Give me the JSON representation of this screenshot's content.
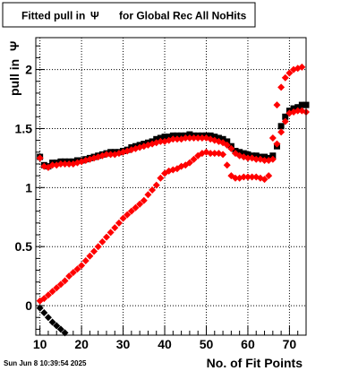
{
  "header": {
    "title_prefix": "Fitted pull in",
    "title_symbol": "Ψ",
    "title_suffix": "for Global Rec All NoHits"
  },
  "footer": {
    "timestamp": "Sun Jun  8 10:39:54 2025"
  },
  "chart_data": {
    "type": "scatter",
    "grid": true,
    "xlabel": "No. of Fit Points",
    "ylabel_prefix": "pull in",
    "ylabel_symbol": "Ψ",
    "xlim": [
      9,
      74
    ],
    "ylim": [
      -0.25,
      2.27
    ],
    "x_ticks": [
      10,
      20,
      30,
      40,
      50,
      60,
      70
    ],
    "y_ticks": [
      0,
      0.5,
      1,
      1.5,
      2
    ],
    "x_tick_labels": [
      "10",
      "20",
      "30",
      "40",
      "50",
      "60",
      "70"
    ],
    "y_tick_labels": [
      "0",
      "0.5",
      "1",
      "1.5",
      "2"
    ],
    "series": [
      {
        "color": "#000000",
        "marker": "square",
        "points": [
          [
            10,
            1.26
          ],
          [
            11,
            1.19
          ],
          [
            12,
            1.18
          ],
          [
            13,
            1.21
          ],
          [
            14,
            1.21
          ],
          [
            15,
            1.22
          ],
          [
            16,
            1.22
          ],
          [
            17,
            1.22
          ],
          [
            18,
            1.22
          ],
          [
            19,
            1.23
          ],
          [
            20,
            1.23
          ],
          [
            21,
            1.24
          ],
          [
            22,
            1.25
          ],
          [
            23,
            1.26
          ],
          [
            24,
            1.27
          ],
          [
            25,
            1.28
          ],
          [
            26,
            1.29
          ],
          [
            27,
            1.3
          ],
          [
            28,
            1.3
          ],
          [
            29,
            1.3
          ],
          [
            30,
            1.31
          ],
          [
            31,
            1.32
          ],
          [
            32,
            1.34
          ],
          [
            33,
            1.35
          ],
          [
            34,
            1.36
          ],
          [
            35,
            1.37
          ],
          [
            36,
            1.38
          ],
          [
            37,
            1.39
          ],
          [
            38,
            1.41
          ],
          [
            39,
            1.42
          ],
          [
            40,
            1.43
          ],
          [
            41,
            1.43
          ],
          [
            42,
            1.44
          ],
          [
            43,
            1.44
          ],
          [
            44,
            1.44
          ],
          [
            45,
            1.44
          ],
          [
            46,
            1.45
          ],
          [
            47,
            1.44
          ],
          [
            48,
            1.44
          ],
          [
            49,
            1.44
          ],
          [
            50,
            1.44
          ],
          [
            51,
            1.44
          ],
          [
            52,
            1.43
          ],
          [
            53,
            1.42
          ],
          [
            54,
            1.41
          ],
          [
            55,
            1.39
          ],
          [
            56,
            1.35
          ],
          [
            57,
            1.31
          ],
          [
            58,
            1.3
          ],
          [
            59,
            1.29
          ],
          [
            60,
            1.28
          ],
          [
            61,
            1.27
          ],
          [
            62,
            1.27
          ],
          [
            63,
            1.26
          ],
          [
            64,
            1.26
          ],
          [
            65,
            1.25
          ],
          [
            66,
            1.27
          ],
          [
            67,
            1.35
          ],
          [
            68,
            1.52
          ],
          [
            69,
            1.6
          ],
          [
            70,
            1.65
          ],
          [
            71,
            1.67
          ],
          [
            72,
            1.68
          ],
          [
            73,
            1.7
          ],
          [
            74,
            1.7
          ]
        ]
      },
      {
        "color": "#000000",
        "marker": "diamond",
        "points": [
          [
            10,
            -0.02
          ],
          [
            11,
            -0.06
          ],
          [
            12,
            -0.1
          ],
          [
            13,
            -0.14
          ],
          [
            14,
            -0.17
          ],
          [
            15,
            -0.2
          ],
          [
            16,
            -0.23
          ]
        ]
      },
      {
        "color": "#ff0000",
        "marker": "diamond",
        "points": [
          [
            10,
            1.25
          ],
          [
            11,
            1.18
          ],
          [
            12,
            1.17
          ],
          [
            13,
            1.19
          ],
          [
            14,
            1.19
          ],
          [
            15,
            1.2
          ],
          [
            16,
            1.2
          ],
          [
            17,
            1.2
          ],
          [
            18,
            1.2
          ],
          [
            19,
            1.21
          ],
          [
            20,
            1.22
          ],
          [
            21,
            1.23
          ],
          [
            22,
            1.24
          ],
          [
            23,
            1.25
          ],
          [
            24,
            1.26
          ],
          [
            25,
            1.27
          ],
          [
            26,
            1.28
          ],
          [
            27,
            1.28
          ],
          [
            28,
            1.28
          ],
          [
            29,
            1.29
          ],
          [
            30,
            1.3
          ],
          [
            31,
            1.31
          ],
          [
            32,
            1.32
          ],
          [
            33,
            1.33
          ],
          [
            34,
            1.34
          ],
          [
            35,
            1.35
          ],
          [
            36,
            1.36
          ],
          [
            37,
            1.37
          ],
          [
            38,
            1.38
          ],
          [
            39,
            1.39
          ],
          [
            40,
            1.39
          ],
          [
            41,
            1.4
          ],
          [
            42,
            1.41
          ],
          [
            43,
            1.41
          ],
          [
            44,
            1.41
          ],
          [
            45,
            1.42
          ],
          [
            46,
            1.42
          ],
          [
            47,
            1.42
          ],
          [
            48,
            1.42
          ],
          [
            49,
            1.42
          ],
          [
            50,
            1.42
          ],
          [
            51,
            1.41
          ],
          [
            52,
            1.4
          ],
          [
            53,
            1.39
          ],
          [
            54,
            1.38
          ],
          [
            55,
            1.36
          ],
          [
            56,
            1.33
          ],
          [
            57,
            1.29
          ],
          [
            58,
            1.27
          ],
          [
            59,
            1.26
          ],
          [
            60,
            1.25
          ],
          [
            61,
            1.25
          ],
          [
            62,
            1.24
          ],
          [
            63,
            1.24
          ],
          [
            64,
            1.23
          ],
          [
            65,
            1.23
          ],
          [
            66,
            1.24
          ],
          [
            67,
            1.37
          ],
          [
            68,
            1.47
          ],
          [
            69,
            1.56
          ],
          [
            70,
            1.63
          ],
          [
            71,
            1.64
          ],
          [
            72,
            1.65
          ],
          [
            73,
            1.65
          ],
          [
            74,
            1.64
          ]
        ]
      },
      {
        "color": "#ff0000",
        "marker": "diamond",
        "points": [
          [
            10,
            0.04
          ],
          [
            11,
            0.06
          ],
          [
            12,
            0.09
          ],
          [
            13,
            0.12
          ],
          [
            14,
            0.15
          ],
          [
            15,
            0.18
          ],
          [
            16,
            0.21
          ],
          [
            17,
            0.25
          ],
          [
            18,
            0.28
          ],
          [
            19,
            0.31
          ],
          [
            20,
            0.34
          ],
          [
            21,
            0.38
          ],
          [
            22,
            0.42
          ],
          [
            23,
            0.46
          ],
          [
            24,
            0.5
          ],
          [
            25,
            0.54
          ],
          [
            26,
            0.58
          ],
          [
            27,
            0.62
          ],
          [
            28,
            0.66
          ],
          [
            29,
            0.7
          ],
          [
            30,
            0.74
          ],
          [
            31,
            0.77
          ],
          [
            32,
            0.8
          ],
          [
            33,
            0.83
          ],
          [
            34,
            0.86
          ],
          [
            35,
            0.89
          ],
          [
            36,
            0.94
          ],
          [
            37,
            0.98
          ],
          [
            38,
            1.02
          ],
          [
            39,
            1.08
          ],
          [
            40,
            1.12
          ],
          [
            41,
            1.14
          ],
          [
            42,
            1.15
          ],
          [
            43,
            1.16
          ],
          [
            44,
            1.18
          ],
          [
            45,
            1.19
          ],
          [
            46,
            1.21
          ],
          [
            47,
            1.24
          ],
          [
            48,
            1.27
          ],
          [
            49,
            1.29
          ],
          [
            50,
            1.3
          ],
          [
            51,
            1.29
          ],
          [
            52,
            1.29
          ],
          [
            53,
            1.29
          ],
          [
            54,
            1.28
          ],
          [
            55,
            1.19
          ],
          [
            56,
            1.1
          ],
          [
            57,
            1.08
          ],
          [
            58,
            1.08
          ],
          [
            59,
            1.09
          ],
          [
            60,
            1.09
          ],
          [
            61,
            1.09
          ],
          [
            62,
            1.09
          ],
          [
            63,
            1.08
          ],
          [
            64,
            1.07
          ],
          [
            65,
            1.1
          ],
          [
            66,
            1.42
          ],
          [
            67,
            1.7
          ],
          [
            68,
            1.85
          ],
          [
            69,
            1.93
          ],
          [
            70,
            1.97
          ],
          [
            71,
            2.0
          ],
          [
            72,
            2.01
          ],
          [
            73,
            2.02
          ]
        ]
      }
    ]
  }
}
